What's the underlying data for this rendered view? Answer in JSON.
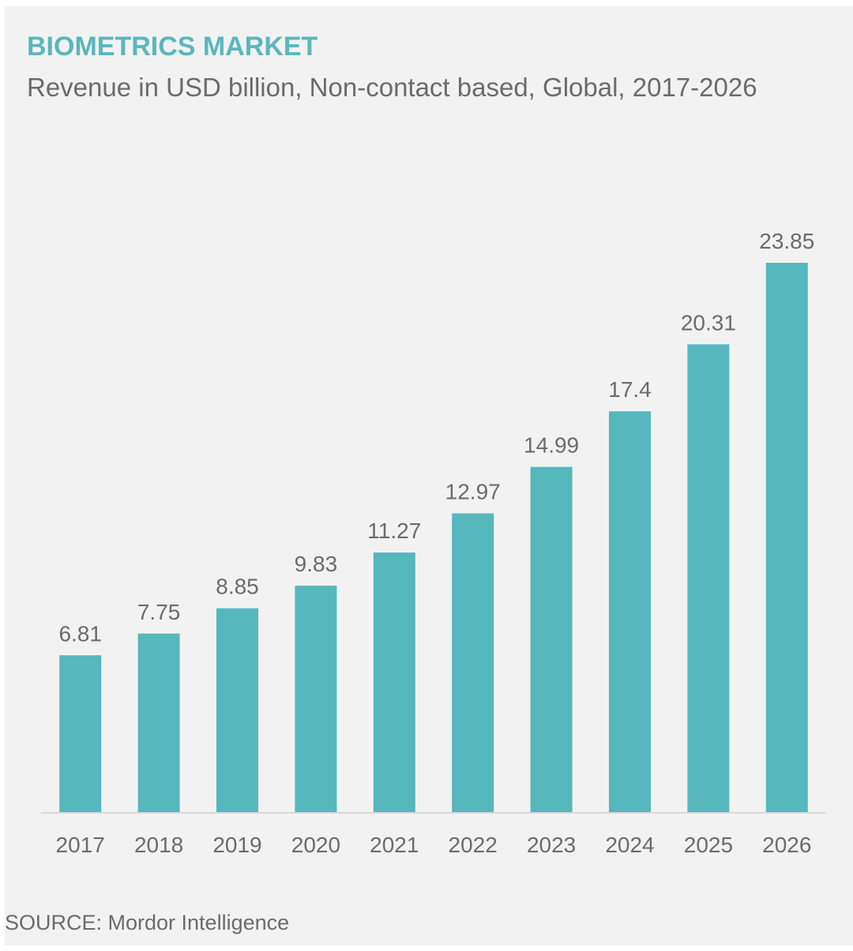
{
  "title": "BIOMETRICS MARKET",
  "subtitle": "Revenue in USD billion, Non-contact based, Global, 2017-2026",
  "source": "SOURCE: Mordor Intelligence",
  "colors": {
    "bar": "#56b7bd",
    "title": "#5ab7bd",
    "text": "#6b6b6b",
    "background": "#f2f2f2",
    "baseline": "#d9d9d9"
  },
  "chart_data": {
    "type": "bar",
    "categories": [
      "2017",
      "2018",
      "2019",
      "2020",
      "2021",
      "2022",
      "2023",
      "2024",
      "2025",
      "2026"
    ],
    "values": [
      6.81,
      7.75,
      8.85,
      9.83,
      11.27,
      12.97,
      14.99,
      17.4,
      20.31,
      23.85
    ],
    "value_labels": [
      "6.81",
      "7.75",
      "8.85",
      "9.83",
      "11.27",
      "12.97",
      "14.99",
      "17.4",
      "20.31",
      "23.85"
    ],
    "title": "BIOMETRICS MARKET",
    "subtitle": "Revenue in USD billion, Non-contact based, Global, 2017-2026",
    "xlabel": "",
    "ylabel": "",
    "ylim": [
      0,
      23.85
    ],
    "grid": false,
    "legend": "none",
    "data_labels": true
  }
}
